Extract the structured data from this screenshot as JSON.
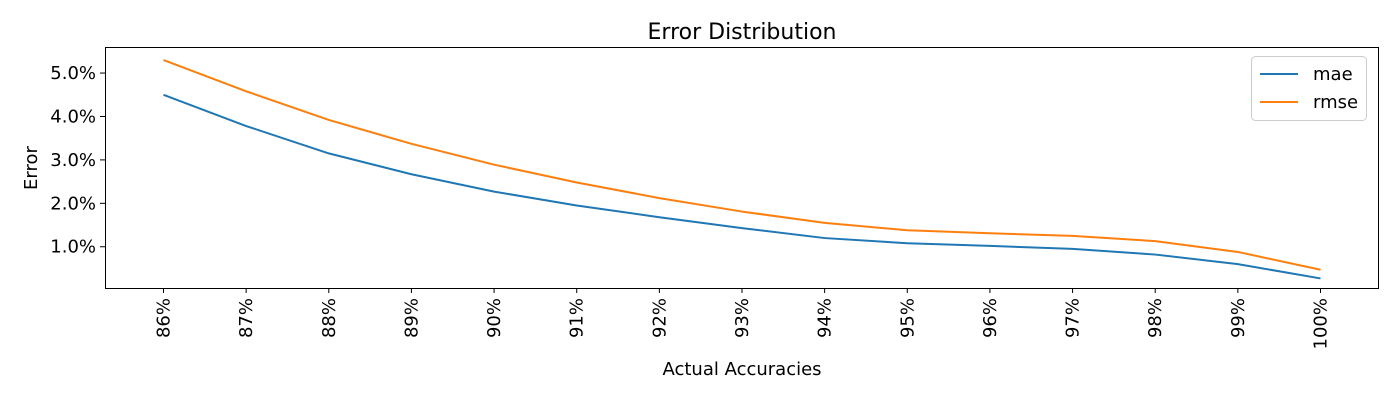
{
  "chart_data": {
    "type": "line",
    "title": "Error Distribution",
    "xlabel": "Actual Accuracies",
    "ylabel": "Error",
    "categories": [
      "86%",
      "87%",
      "88%",
      "89%",
      "90%",
      "91%",
      "92%",
      "93%",
      "94%",
      "95%",
      "96%",
      "97%",
      "98%",
      "99%",
      "100%"
    ],
    "yticks": [
      1.0,
      2.0,
      3.0,
      4.0,
      5.0
    ],
    "ytick_labels": [
      "1.0%",
      "2.0%",
      "3.0%",
      "4.0%",
      "5.0%"
    ],
    "ylim": [
      0.05,
      5.6
    ],
    "grid": false,
    "legend_position": "top-right",
    "series": [
      {
        "name": "mae",
        "color": "#1f77b4",
        "values": [
          4.5,
          3.78,
          3.15,
          2.67,
          2.27,
          1.95,
          1.68,
          1.43,
          1.2,
          1.08,
          1.02,
          0.95,
          0.82,
          0.6,
          0.27
        ]
      },
      {
        "name": "rmse",
        "color": "#ff7f0e",
        "values": [
          5.3,
          4.58,
          3.92,
          3.37,
          2.89,
          2.48,
          2.12,
          1.81,
          1.55,
          1.38,
          1.31,
          1.25,
          1.13,
          0.88,
          0.47
        ]
      }
    ]
  }
}
